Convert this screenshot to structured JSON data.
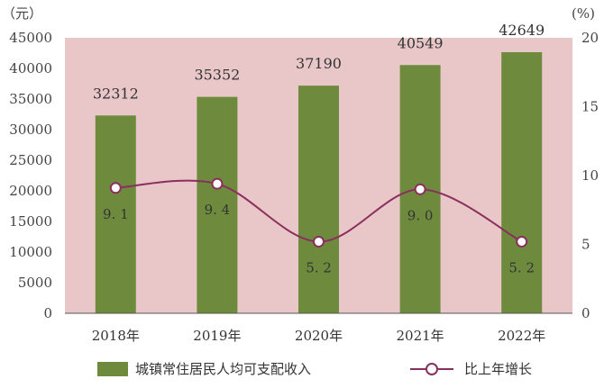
{
  "chart_data": {
    "type": "bar",
    "categories": [
      "2018年",
      "2019年",
      "2020年",
      "2021年",
      "2022年"
    ],
    "series": [
      {
        "name": "城镇常住居民人均可支配收入",
        "type": "bar",
        "axis": "left",
        "values": [
          32312,
          35352,
          37190,
          40549,
          42649
        ],
        "labels": [
          "32312",
          "35352",
          "37190",
          "40549",
          "42649"
        ]
      },
      {
        "name": "比上年增长",
        "type": "line",
        "axis": "right",
        "values": [
          9.1,
          9.4,
          5.2,
          9.0,
          5.2
        ],
        "labels": [
          "9. 1",
          "9. 4",
          "5. 2",
          "9. 0",
          "5. 2"
        ]
      }
    ],
    "y_left": {
      "unit": "（元）",
      "ylim": [
        0,
        45000
      ],
      "ticks": [
        "0",
        "5000",
        "10000",
        "15000",
        "20000",
        "25000",
        "30000",
        "35000",
        "40000",
        "45000"
      ]
    },
    "y_right": {
      "unit": "(%)",
      "ylim": [
        0,
        20
      ],
      "ticks": [
        "0",
        "5",
        "10",
        "15",
        "20"
      ]
    },
    "legend_position": "bottom",
    "grid": false,
    "colors": {
      "plot_background": "#e9c7c8",
      "bar": "#6e8b3d",
      "line": "#8a2f5e",
      "marker_fill": "#ffffff"
    }
  }
}
